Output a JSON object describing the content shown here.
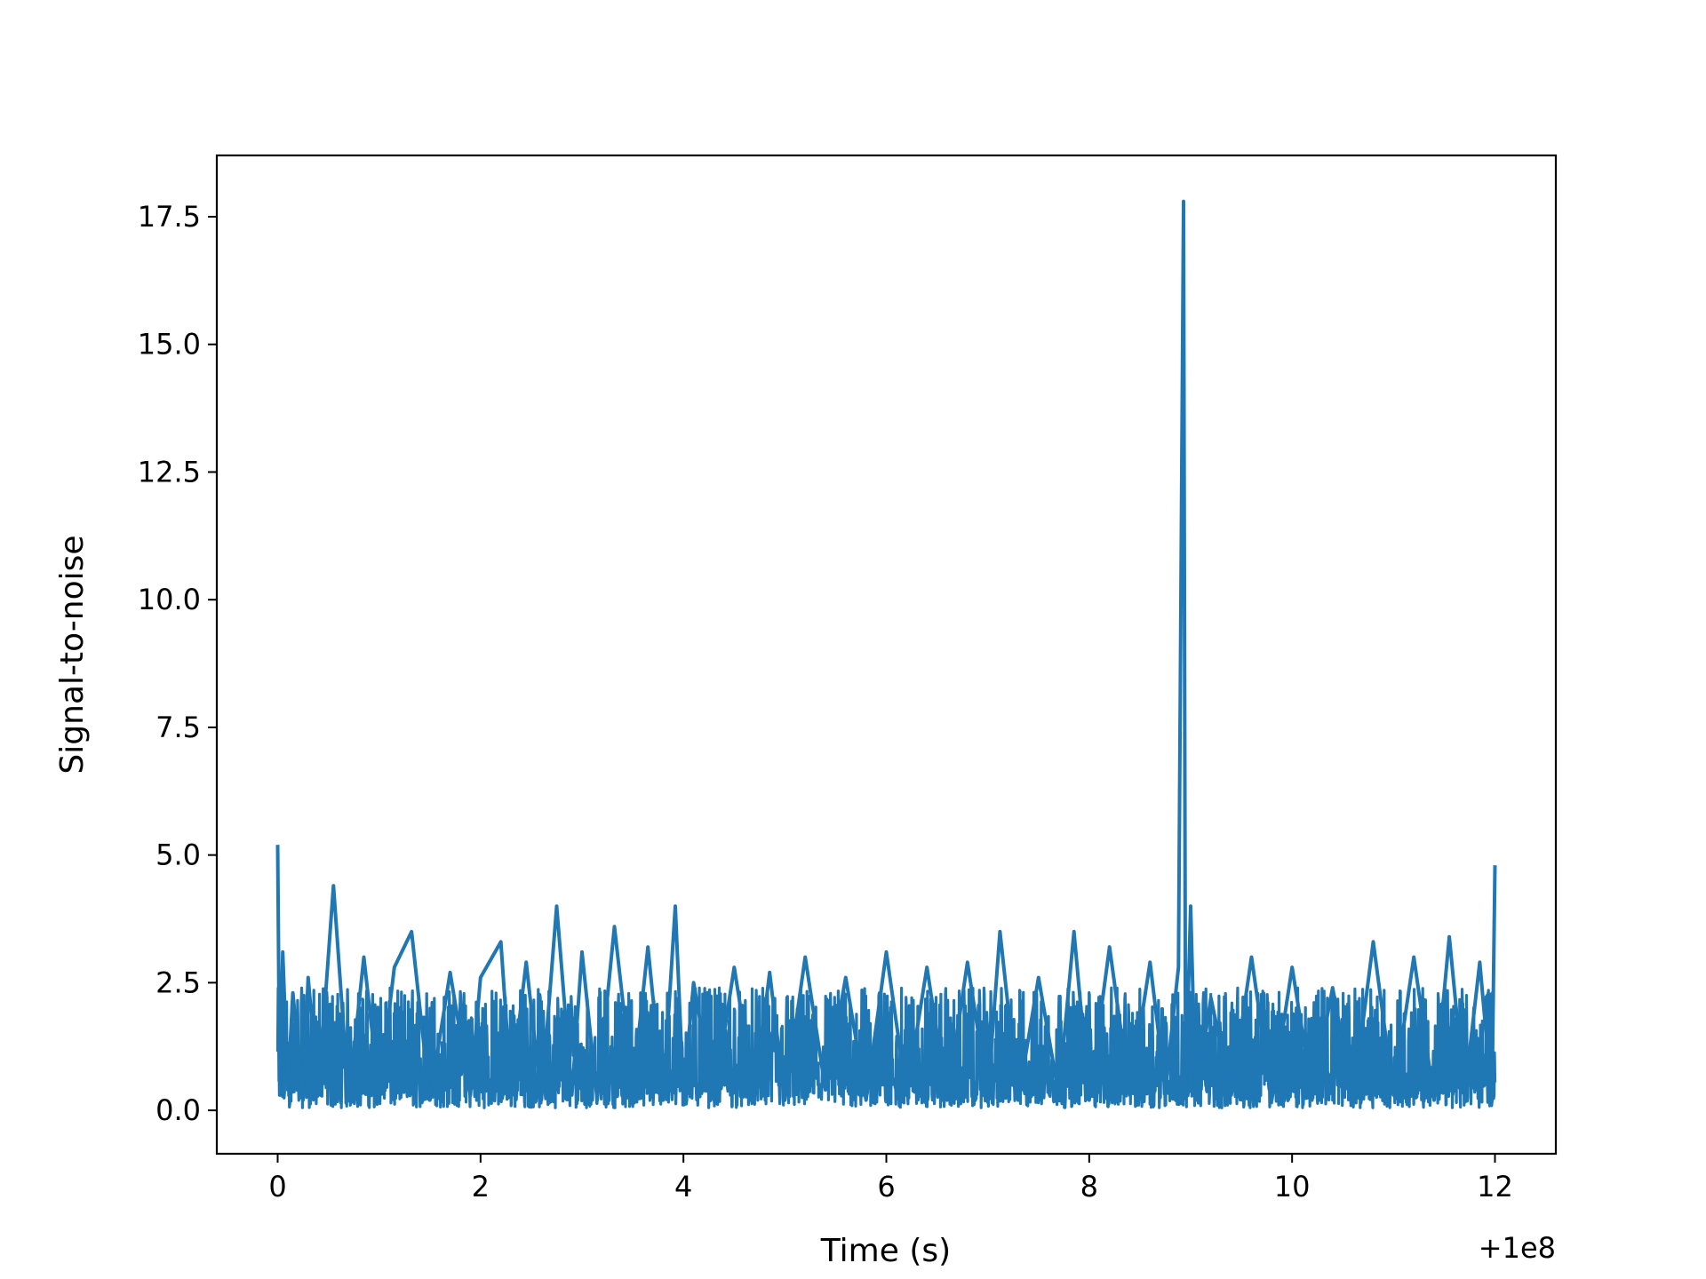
{
  "chart_data": {
    "type": "line",
    "title": "",
    "xlabel": "Time (s)",
    "ylabel": "Signal-to-noise",
    "x_offset_label": "+1e8",
    "xlim": [
      -0.6,
      12.6
    ],
    "ylim": [
      -0.85,
      18.7
    ],
    "x_ticks": [
      0,
      2,
      4,
      6,
      8,
      10,
      12
    ],
    "x_tick_labels": [
      "0",
      "2",
      "4",
      "6",
      "8",
      "10",
      "12"
    ],
    "y_ticks": [
      0.0,
      2.5,
      5.0,
      7.5,
      10.0,
      12.5,
      15.0,
      17.5
    ],
    "y_tick_labels": [
      "0.0",
      "2.5",
      "5.0",
      "7.5",
      "10.0",
      "12.5",
      "15.0",
      "17.5"
    ],
    "grid": false,
    "legend": "none",
    "color": "#1f77b4",
    "series": [
      {
        "x": [
          0.0,
          0.02,
          0.05,
          0.1,
          0.15,
          0.25,
          0.3,
          0.4,
          0.55,
          0.7,
          0.85,
          1.0,
          1.15,
          1.32,
          1.5,
          1.7,
          1.9,
          2.0,
          2.2,
          2.3,
          2.45,
          2.6,
          2.75,
          2.9,
          3.0,
          3.15,
          3.32,
          3.5,
          3.65,
          3.8,
          3.92,
          4.0,
          4.1,
          4.3,
          4.5,
          4.7,
          4.85,
          5.0,
          5.2,
          5.4,
          5.6,
          5.8,
          6.0,
          6.2,
          6.4,
          6.6,
          6.8,
          7.0,
          7.12,
          7.3,
          7.5,
          7.7,
          7.85,
          8.0,
          8.2,
          8.4,
          8.6,
          8.75,
          8.88,
          8.93,
          8.95,
          9.0,
          9.05,
          9.2,
          9.4,
          9.6,
          9.8,
          10.0,
          10.2,
          10.4,
          10.6,
          10.8,
          11.0,
          11.2,
          11.4,
          11.55,
          11.7,
          11.85,
          11.97,
          12.0
        ],
        "y": [
          5.2,
          0.3,
          3.1,
          0.4,
          2.3,
          0.2,
          2.6,
          0.3,
          4.4,
          0.2,
          3.0,
          0.3,
          2.8,
          3.5,
          0.2,
          2.7,
          0.3,
          2.6,
          3.3,
          0.4,
          2.9,
          0.2,
          4.0,
          0.3,
          3.1,
          0.2,
          3.6,
          0.4,
          3.2,
          0.2,
          4.0,
          0.3,
          2.5,
          0.2,
          2.8,
          0.3,
          2.7,
          0.2,
          3.0,
          0.4,
          2.6,
          0.2,
          3.1,
          0.3,
          2.8,
          0.2,
          2.9,
          0.3,
          3.5,
          0.2,
          2.6,
          0.3,
          3.5,
          0.2,
          3.2,
          0.3,
          2.9,
          0.4,
          2.8,
          17.8,
          0.3,
          4.0,
          0.2,
          2.2,
          0.3,
          3.0,
          0.2,
          2.8,
          0.3,
          2.4,
          0.2,
          3.3,
          0.3,
          3.0,
          0.2,
          3.4,
          0.3,
          2.9,
          0.2,
          4.8
        ]
      }
    ]
  }
}
